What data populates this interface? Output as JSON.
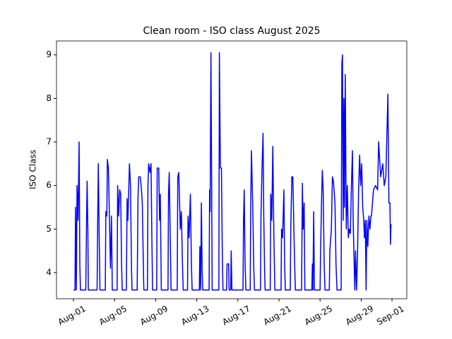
{
  "chart_data": {
    "type": "line",
    "title": "Clean room - ISO class August 2025",
    "y_label": "ISO Class",
    "color": "#0000ff",
    "x": [
      1.0,
      1.15,
      1.2,
      1.28,
      1.35,
      1.45,
      1.55,
      1.62,
      1.68,
      2.2,
      2.28,
      2.33,
      2.4,
      2.45,
      3.3,
      3.35,
      3.42,
      3.5,
      3.58,
      4.1,
      4.15,
      4.25,
      4.3,
      4.4,
      4.5,
      4.6,
      4.7,
      4.78,
      5.25,
      5.3,
      5.4,
      5.5,
      5.6,
      5.68,
      5.75,
      6.15,
      6.22,
      6.3,
      6.45,
      6.55,
      6.65,
      6.7,
      7.2,
      7.28,
      7.35,
      7.5,
      7.62,
      7.7,
      7.8,
      7.85,
      8.2,
      8.25,
      8.32,
      8.45,
      8.55,
      8.62,
      8.7,
      9.1,
      9.15,
      9.3,
      9.38,
      9.45,
      9.55,
      10.2,
      10.25,
      10.32,
      10.42,
      10.5,
      11.1,
      11.15,
      11.25,
      11.4,
      11.5,
      11.6,
      11.68,
      12.1,
      12.15,
      12.25,
      12.38,
      12.48,
      12.55,
      13.25,
      13.3,
      13.38,
      13.45,
      13.52,
      13.58,
      14.2,
      14.25,
      14.3,
      14.38,
      14.45,
      14.5,
      15.15,
      15.2,
      15.3,
      15.4,
      15.48,
      15.55,
      15.9,
      15.95,
      16.1,
      16.15,
      16.3,
      16.35,
      16.42,
      17.5,
      17.55,
      17.62,
      17.7,
      17.78,
      18.2,
      18.25,
      18.32,
      18.45,
      18.55,
      18.62,
      19.2,
      19.25,
      19.35,
      19.45,
      19.52,
      19.6,
      19.65,
      20.15,
      20.2,
      20.3,
      20.4,
      20.5,
      20.6,
      21.2,
      21.25,
      21.35,
      21.48,
      21.55,
      21.62,
      22.1,
      22.15,
      22.25,
      22.35,
      22.45,
      22.55,
      22.6,
      23.2,
      23.28,
      23.35,
      23.45,
      23.52,
      24.2,
      24.25,
      24.3,
      24.38,
      24.45,
      25.0,
      25.05,
      25.15,
      25.22,
      25.3,
      25.4,
      25.48,
      25.9,
      25.95,
      26.1,
      26.2,
      26.3,
      26.45,
      26.55,
      26.65,
      27.05,
      27.12,
      27.18,
      27.25,
      27.32,
      27.38,
      27.45,
      27.55,
      27.65,
      27.75,
      27.85,
      27.95,
      28.05,
      28.15,
      28.22,
      28.3,
      28.38,
      28.45,
      28.55,
      28.65,
      28.75,
      28.85,
      28.95,
      29.05,
      29.15,
      29.25,
      29.32,
      29.4,
      29.48,
      29.55,
      29.65,
      29.75,
      29.85,
      29.95,
      30.0,
      30.2,
      30.4,
      30.6,
      30.7,
      30.9,
      31.1,
      31.25,
      31.4,
      31.6,
      31.7,
      31.8,
      31.85,
      31.9,
      31.95
    ],
    "values": [
      3.6,
      3.6,
      5.5,
      3.6,
      6.0,
      5.2,
      7.0,
      4.2,
      3.6,
      3.6,
      5.3,
      6.1,
      5.0,
      3.6,
      3.6,
      5.0,
      6.5,
      4.9,
      3.6,
      3.6,
      5.4,
      5.3,
      6.6,
      6.4,
      5.3,
      4.1,
      5.3,
      3.6,
      3.6,
      6.0,
      5.3,
      5.9,
      5.8,
      4.2,
      3.6,
      3.6,
      5.7,
      5.2,
      6.5,
      6.0,
      4.1,
      3.6,
      3.6,
      5.7,
      6.2,
      6.2,
      5.9,
      5.6,
      4.2,
      3.6,
      3.6,
      6.0,
      6.5,
      6.3,
      6.5,
      5.0,
      3.6,
      3.6,
      6.4,
      6.4,
      5.2,
      5.8,
      3.6,
      3.6,
      5.8,
      6.3,
      4.8,
      3.6,
      3.6,
      6.2,
      6.3,
      5.0,
      5.4,
      4.3,
      3.6,
      3.6,
      5.3,
      4.8,
      5.8,
      4.2,
      3.6,
      3.6,
      4.6,
      3.6,
      5.6,
      4.1,
      3.6,
      3.6,
      5.9,
      5.4,
      9.05,
      6.0,
      3.6,
      3.6,
      9.05,
      6.4,
      6.4,
      4.6,
      3.6,
      3.6,
      4.2,
      4.2,
      3.6,
      3.6,
      4.5,
      3.6,
      3.6,
      5.2,
      5.9,
      4.2,
      3.6,
      3.6,
      5.5,
      6.8,
      5.5,
      4.1,
      3.6,
      3.6,
      5.3,
      6.4,
      7.2,
      5.3,
      4.1,
      3.6,
      3.6,
      5.8,
      5.2,
      6.9,
      4.9,
      3.6,
      3.6,
      5.0,
      4.8,
      5.9,
      4.2,
      3.6,
      3.6,
      5.0,
      6.2,
      6.2,
      5.0,
      4.0,
      3.6,
      3.6,
      6.05,
      5.0,
      5.6,
      3.6,
      3.6,
      4.2,
      3.6,
      5.4,
      3.6,
      3.6,
      4.5,
      5.7,
      6.35,
      5.9,
      4.2,
      3.6,
      3.6,
      4.5,
      5.0,
      6.2,
      6.1,
      5.6,
      4.2,
      3.6,
      3.6,
      8.8,
      9.0,
      5.2,
      8.0,
      5.5,
      8.55,
      5.0,
      6.0,
      4.8,
      5.0,
      4.9,
      6.0,
      6.8,
      5.2,
      4.4,
      3.6,
      4.5,
      3.6,
      4.5,
      5.9,
      6.7,
      6.0,
      6.5,
      5.5,
      5.2,
      4.8,
      5.2,
      3.6,
      5.2,
      4.6,
      5.3,
      5.0,
      5.3,
      5.3,
      5.9,
      6.0,
      5.9,
      7.0,
      6.2,
      6.5,
      6.0,
      6.2,
      8.1,
      5.6,
      5.6,
      4.65,
      5.1,
      5.1
    ],
    "xlim": [
      -0.65,
      33.44
    ],
    "xticks": [
      {
        "value": 1,
        "label": "Aug-01"
      },
      {
        "value": 5,
        "label": "Aug-05"
      },
      {
        "value": 9,
        "label": "Aug-09"
      },
      {
        "value": 13,
        "label": "Aug-13"
      },
      {
        "value": 17,
        "label": "Aug-17"
      },
      {
        "value": 21,
        "label": "Aug-21"
      },
      {
        "value": 25,
        "label": "Aug-25"
      },
      {
        "value": 29,
        "label": "Aug-29"
      },
      {
        "value": 32,
        "label": "Sep-01"
      }
    ],
    "ylim": [
      3.4,
      9.32
    ],
    "yticks": [
      4,
      5,
      6,
      7,
      8,
      9
    ],
    "grid": false
  }
}
